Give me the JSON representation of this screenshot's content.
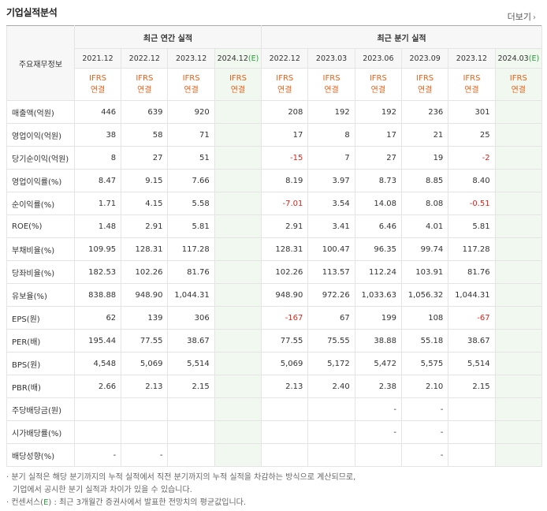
{
  "header": {
    "title": "기업실적분석",
    "more_label": "더보기"
  },
  "table": {
    "corner_label": "주요재무정보",
    "annual_group": "최근 연간 실적",
    "quarter_group": "최근 분기 실적",
    "annual_periods": [
      "2021.12",
      "2022.12",
      "2023.12",
      "2024.12"
    ],
    "annual_estimate_suffix": "(E)",
    "quarter_periods": [
      "2022.12",
      "2023.03",
      "2023.06",
      "2023.09",
      "2023.12",
      "2024.03"
    ],
    "quarter_estimate_suffix": "(E)",
    "gaap_top": "IFRS",
    "gaap_bottom": "연결",
    "rows": [
      {
        "label": "매출액(억원)",
        "annual": [
          "446",
          "639",
          "920",
          ""
        ],
        "quarter": [
          "208",
          "192",
          "192",
          "236",
          "301",
          ""
        ]
      },
      {
        "label": "영업이익(억원)",
        "annual": [
          "38",
          "58",
          "71",
          ""
        ],
        "quarter": [
          "17",
          "8",
          "17",
          "21",
          "25",
          ""
        ]
      },
      {
        "label": "당기순이익(억원)",
        "annual": [
          "8",
          "27",
          "51",
          ""
        ],
        "quarter": [
          "-15",
          "7",
          "27",
          "19",
          "-2",
          ""
        ]
      },
      {
        "label": "영업이익률(%)",
        "annual": [
          "8.47",
          "9.15",
          "7.66",
          ""
        ],
        "quarter": [
          "8.19",
          "3.97",
          "8.73",
          "8.85",
          "8.40",
          ""
        ]
      },
      {
        "label": "순이익률(%)",
        "annual": [
          "1.71",
          "4.15",
          "5.58",
          ""
        ],
        "quarter": [
          "-7.01",
          "3.54",
          "14.08",
          "8.08",
          "-0.51",
          ""
        ]
      },
      {
        "label": "ROE(%)",
        "annual": [
          "1.48",
          "2.91",
          "5.81",
          ""
        ],
        "quarter": [
          "2.91",
          "3.41",
          "6.46",
          "4.01",
          "5.81",
          ""
        ]
      },
      {
        "label": "부채비율(%)",
        "annual": [
          "109.95",
          "128.31",
          "117.28",
          ""
        ],
        "quarter": [
          "128.31",
          "100.47",
          "96.35",
          "99.74",
          "117.28",
          ""
        ]
      },
      {
        "label": "당좌비율(%)",
        "annual": [
          "182.53",
          "102.26",
          "81.76",
          ""
        ],
        "quarter": [
          "102.26",
          "113.57",
          "112.24",
          "103.91",
          "81.76",
          ""
        ]
      },
      {
        "label": "유보율(%)",
        "annual": [
          "838.88",
          "948.90",
          "1,044.31",
          ""
        ],
        "quarter": [
          "948.90",
          "972.26",
          "1,033.63",
          "1,056.32",
          "1,044.31",
          ""
        ]
      },
      {
        "label": "EPS(원)",
        "annual": [
          "62",
          "139",
          "306",
          ""
        ],
        "quarter": [
          "-167",
          "67",
          "199",
          "108",
          "-67",
          ""
        ]
      },
      {
        "label": "PER(배)",
        "annual": [
          "195.44",
          "77.55",
          "38.67",
          ""
        ],
        "quarter": [
          "77.55",
          "75.55",
          "38.88",
          "55.18",
          "38.67",
          ""
        ]
      },
      {
        "label": "BPS(원)",
        "annual": [
          "4,548",
          "5,069",
          "5,514",
          ""
        ],
        "quarter": [
          "5,069",
          "5,172",
          "5,472",
          "5,575",
          "5,514",
          ""
        ]
      },
      {
        "label": "PBR(배)",
        "annual": [
          "2.66",
          "2.13",
          "2.15",
          ""
        ],
        "quarter": [
          "2.13",
          "2.40",
          "2.38",
          "2.10",
          "2.15",
          ""
        ]
      },
      {
        "label": "주당배당금(원)",
        "annual": [
          "",
          "",
          "",
          ""
        ],
        "quarter": [
          "",
          "",
          "-",
          "-",
          "",
          ""
        ]
      },
      {
        "label": "시가배당률(%)",
        "annual": [
          "",
          "",
          "",
          ""
        ],
        "quarter": [
          "",
          "",
          "-",
          "-",
          "",
          ""
        ]
      },
      {
        "label": "배당성향(%)",
        "annual": [
          "-",
          "-",
          "",
          ""
        ],
        "quarter": [
          "",
          "",
          "",
          "-",
          "",
          ""
        ]
      }
    ],
    "separator_before_rows": [
      3,
      6,
      9,
      13
    ]
  },
  "notes": {
    "line1": "· 분기 실적은 해당 분기까지의 누적 실적에서 직전 분기까지의 누적 실적을 차감하는 방식으로 계산되므로,",
    "line2": "기업에서 공시한 분기 실적과 차이가 있을 수 있습니다.",
    "line3_prefix": "· 컨센서스(",
    "line3_e": "E",
    "line3_suffix": ") : 최근 3개월간 증권사에서 발표한 전망치의 평균값입니다."
  },
  "colors": {
    "negative": "#e0241b",
    "estimate_green": "#2a9a3a",
    "gaap_orange": "#e8611a",
    "estimate_shade": "#f0f8f0"
  }
}
